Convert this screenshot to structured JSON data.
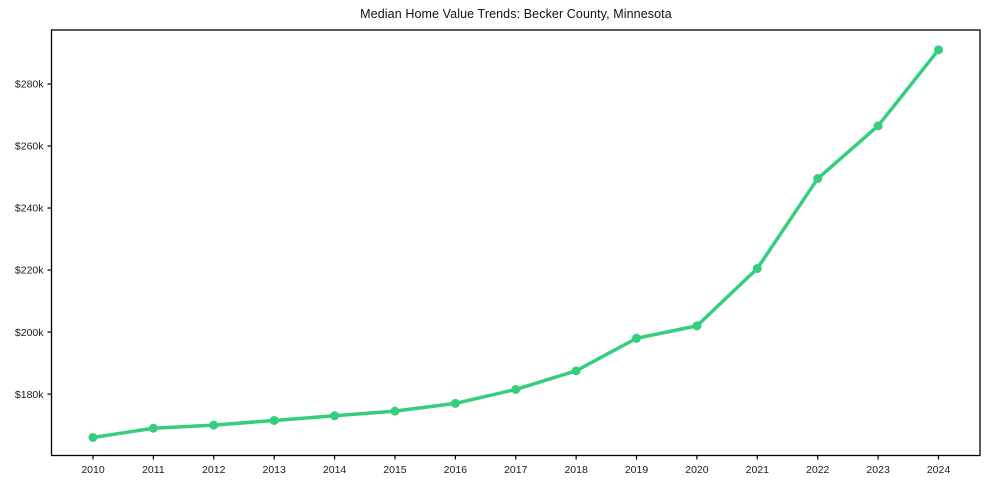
{
  "figure": {
    "background": "#ffffff",
    "border_color": "#000000",
    "tick_color": "#000000",
    "label_color": "#1a1a1a"
  },
  "chart_data": {
    "type": "line",
    "title": "Median Home Value Trends: Becker County, Minnesota",
    "categories": [
      "2010",
      "2011",
      "2012",
      "2013",
      "2014",
      "2015",
      "2016",
      "2017",
      "2018",
      "2019",
      "2020",
      "2021",
      "2022",
      "2023",
      "2024"
    ],
    "series": [
      {
        "name": "Median home value",
        "values": [
          166000,
          169000,
          170000,
          171500,
          173000,
          174500,
          177000,
          181500,
          187500,
          198000,
          202000,
          220500,
          249500,
          266500,
          291000
        ],
        "color": "#35ce7d",
        "line_width": 3.5,
        "marker": "circle",
        "marker_radius": 4.5
      }
    ],
    "xlabel": "",
    "ylabel": "",
    "ylim": [
      160200,
      297400
    ],
    "yticks": [
      180000,
      200000,
      220000,
      240000,
      260000,
      280000
    ],
    "ytick_labels": [
      "$180k",
      "$200k",
      "$220k",
      "$240k",
      "$260k",
      "$280k"
    ],
    "grid": false,
    "legend": false
  }
}
